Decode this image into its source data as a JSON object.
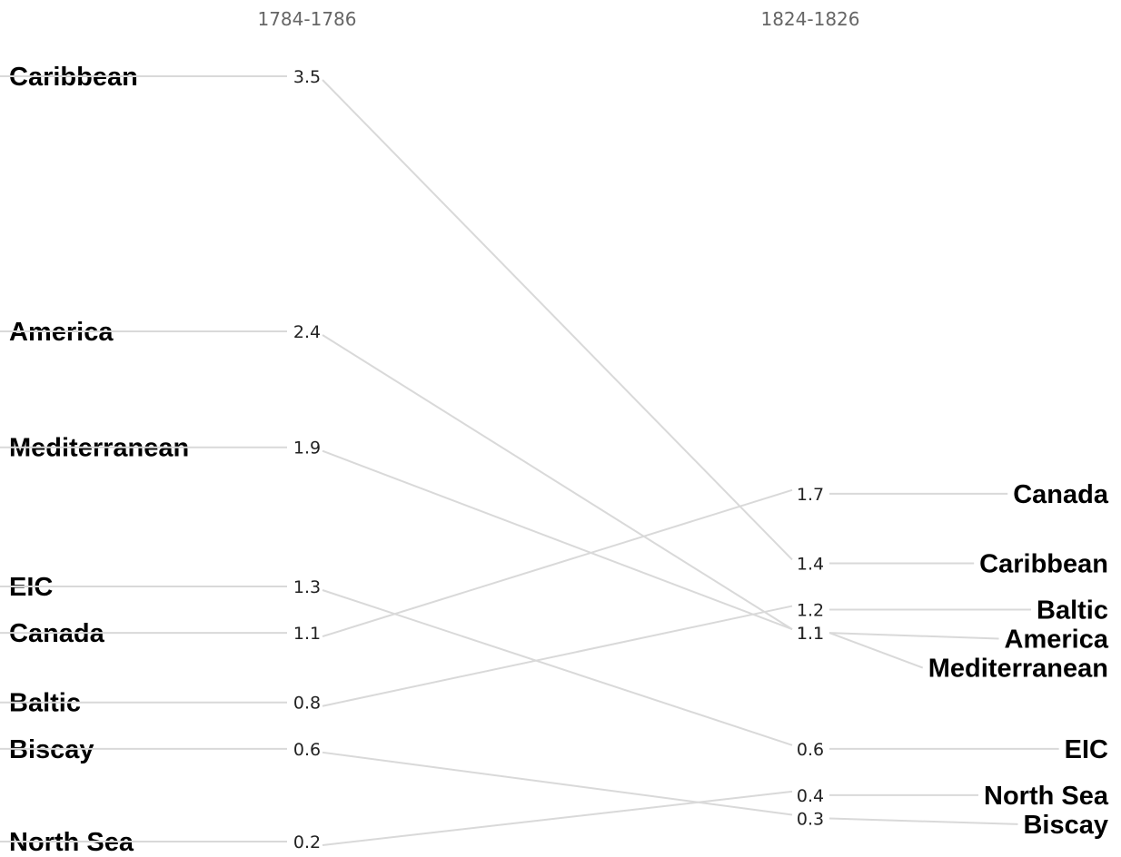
{
  "chart_data": {
    "type": "slope",
    "columns": [
      "1784-1786",
      "1824-1826"
    ],
    "series": [
      {
        "name": "Caribbean",
        "values": [
          3.5,
          1.4
        ]
      },
      {
        "name": "America",
        "values": [
          2.4,
          1.1
        ]
      },
      {
        "name": "Mediterranean",
        "values": [
          1.9,
          1.1
        ]
      },
      {
        "name": "EIC",
        "values": [
          1.3,
          0.6
        ]
      },
      {
        "name": "Canada",
        "values": [
          1.1,
          1.7
        ]
      },
      {
        "name": "Baltic",
        "values": [
          0.8,
          1.2
        ]
      },
      {
        "name": "Biscay",
        "values": [
          0.6,
          0.3
        ]
      },
      {
        "name": "North Sea",
        "values": [
          0.2,
          0.4
        ]
      }
    ],
    "ylim": [
      0.2,
      3.5
    ],
    "grid": false,
    "legend": "none"
  }
}
